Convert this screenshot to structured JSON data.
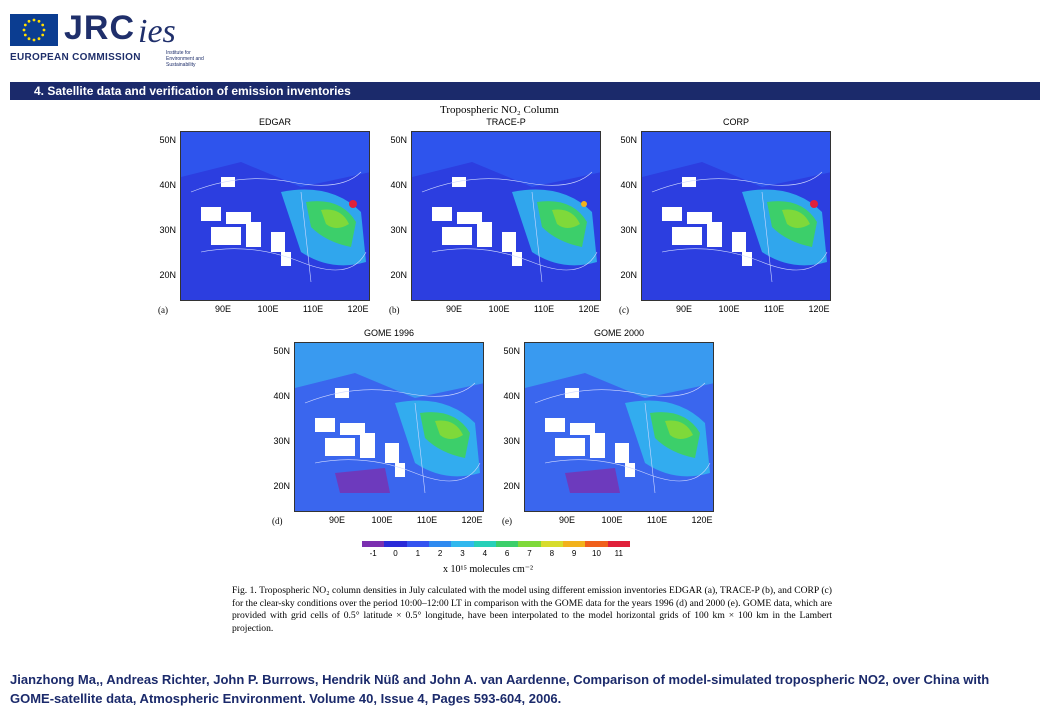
{
  "header": {
    "jrc_logo_text": "JRC",
    "commission_text": "EUROPEAN COMMISSION",
    "ies_logo_text": "ies",
    "ies_subtitle": "Institute for Environment and Sustainability"
  },
  "section": {
    "title": "4. Satellite data and verification of emission inventories"
  },
  "figure": {
    "title": "Tropospheric NO₂ Column",
    "panels": [
      {
        "name": "EDGAR",
        "letter": "(a)"
      },
      {
        "name": "TRACE-P",
        "letter": "(b)"
      },
      {
        "name": "CORP",
        "letter": "(c)"
      },
      {
        "name": "GOME 1996",
        "letter": "(d)"
      },
      {
        "name": "GOME 2000",
        "letter": "(e)"
      }
    ],
    "lat_labels": [
      "50N",
      "40N",
      "30N",
      "20N"
    ],
    "lon_labels": [
      "90E",
      "100E",
      "110E",
      "120E"
    ],
    "colorbar": {
      "ticks": [
        "-1",
        "0",
        "1",
        "2",
        "3",
        "4",
        "6",
        "7",
        "8",
        "9",
        "10",
        "11"
      ],
      "colors": [
        "#7b2fb0",
        "#2a2ad8",
        "#3454f0",
        "#2f8af0",
        "#31b8ee",
        "#27d0b8",
        "#3ccf6a",
        "#7fd93a",
        "#d7dc2c",
        "#f2b21c",
        "#f0601c",
        "#e0203a"
      ],
      "unit": "x 10¹⁵ molecules cm⁻²"
    },
    "caption": "Fig. 1. Tropospheric NO₂ column densities in July calculated with the model using different emission inventories EDGAR (a), TRACE-P (b), and CORP (c) for the clear-sky conditions over the period 10:00–12:00 LT in comparison with the GOME data for the years 1996 (d) and 2000 (e). GOME data, which are provided with grid cells of 0.5° latitude × 0.5° longitude, have been interpolated to the model horizontal grids of 100 km × 100 km in the Lambert projection."
  },
  "citation": "Jianzhong Ma,, Andreas Richter, John P. Burrows, Hendrik Nüß and John A. van Aardenne, Comparison of model-simulated tropospheric NO2, over China with GOME-satellite data, Atmospheric Environment. Volume 40, Issue 4, Pages 593-604, 2006."
}
